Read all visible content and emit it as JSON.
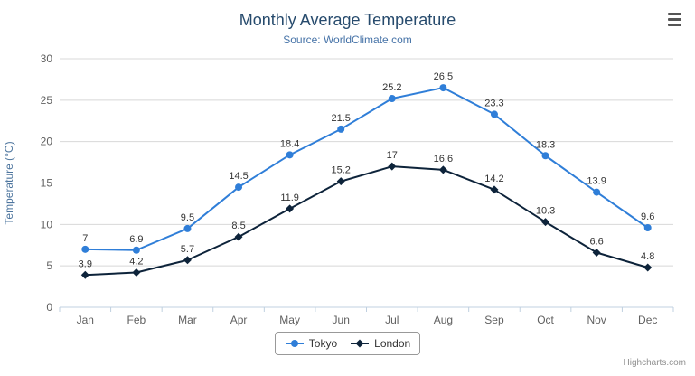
{
  "chart_data": {
    "type": "line",
    "title": "Monthly Average Temperature",
    "subtitle": "Source: WorldClimate.com",
    "categories": [
      "Jan",
      "Feb",
      "Mar",
      "Apr",
      "May",
      "Jun",
      "Jul",
      "Aug",
      "Sep",
      "Oct",
      "Nov",
      "Dec"
    ],
    "series": [
      {
        "name": "Tokyo",
        "color": "#2f7ed8",
        "marker": "circle",
        "values": [
          7,
          6.9,
          9.5,
          14.5,
          18.4,
          21.5,
          25.2,
          26.5,
          23.3,
          18.3,
          13.9,
          9.6
        ]
      },
      {
        "name": "London",
        "color": "#0d233a",
        "marker": "diamond",
        "values": [
          3.9,
          4.2,
          5.7,
          8.5,
          11.9,
          15.2,
          17,
          16.6,
          14.2,
          10.3,
          6.6,
          4.8
        ]
      }
    ],
    "xlabel": "",
    "ylabel": "Temperature (°C)",
    "ylim": [
      0,
      30
    ],
    "yticks": [
      0,
      5,
      10,
      15,
      20,
      25,
      30
    ],
    "ytick_interval": 5,
    "grid": true,
    "grid_color": "#d8d8d8",
    "axis_line_color": "#c0d0e0",
    "legend_position": "bottom",
    "data_labels_visible": true
  },
  "credits": {
    "label": "Highcharts.com"
  },
  "icons": {
    "menu": "hamburger-menu-icon"
  }
}
